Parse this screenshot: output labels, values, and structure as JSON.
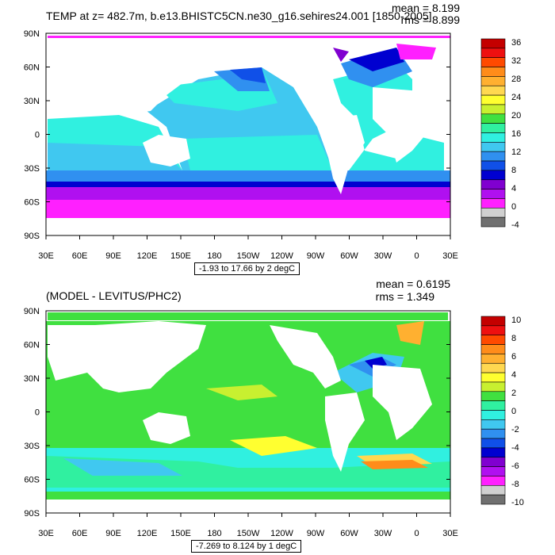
{
  "panels": [
    {
      "title": "TEMP at z= 482.7m, b.e13.BHISTC5CN.ne30_g16.sehires24.001 [1850-2005]",
      "mean": "mean = 8.199",
      "rms": "rms = 8.899",
      "range_label": "-1.93 to 17.66 by 2 degC",
      "lat_labels": [
        "90N",
        "60N",
        "30N",
        "0",
        "30S",
        "60S",
        "90S"
      ],
      "lon_labels": [
        "30E",
        "60E",
        "90E",
        "120E",
        "150E",
        "180",
        "150W",
        "120W",
        "90W",
        "60W",
        "30W",
        "0",
        "30E"
      ],
      "colorbar_labels": [
        "36",
        "32",
        "28",
        "24",
        "20",
        "16",
        "12",
        "8",
        "4",
        "0",
        "-4"
      ],
      "colorbar_colors": [
        "#c40000",
        "#ee1010",
        "#ff4a00",
        "#ff8c1a",
        "#ffb030",
        "#ffd850",
        "#ffff30",
        "#c8f030",
        "#40e040",
        "#30f0a0",
        "#30f0e0",
        "#40c8f0",
        "#3090f0",
        "#1050e8",
        "#0000d0",
        "#8000d0",
        "#b010f0",
        "#ff20ff",
        "#d0d0d0",
        "#707070"
      ]
    },
    {
      "title": "(MODEL - LEVITUS/PHC2)",
      "mean": "mean = 0.6195",
      "rms": "rms = 1.349",
      "range_label": "-7.269 to 8.124 by 1 degC",
      "lat_labels": [
        "90N",
        "60N",
        "30N",
        "0",
        "30S",
        "60S",
        "90S"
      ],
      "lon_labels": [
        "30E",
        "60E",
        "90E",
        "120E",
        "150E",
        "180",
        "150W",
        "120W",
        "90W",
        "60W",
        "30W",
        "0",
        "30E"
      ],
      "colorbar_labels": [
        "10",
        "8",
        "6",
        "4",
        "2",
        "0",
        "-2",
        "-4",
        "-6",
        "-8",
        "-10"
      ],
      "colorbar_colors": [
        "#c40000",
        "#ee1010",
        "#ff4a00",
        "#ff8c1a",
        "#ffb030",
        "#ffd850",
        "#ffff30",
        "#c8f030",
        "#40e040",
        "#30f0a0",
        "#30f0e0",
        "#40c8f0",
        "#3090f0",
        "#1050e8",
        "#0000d0",
        "#8000d0",
        "#b010f0",
        "#ff20ff",
        "#d0d0d0",
        "#707070"
      ]
    }
  ]
}
